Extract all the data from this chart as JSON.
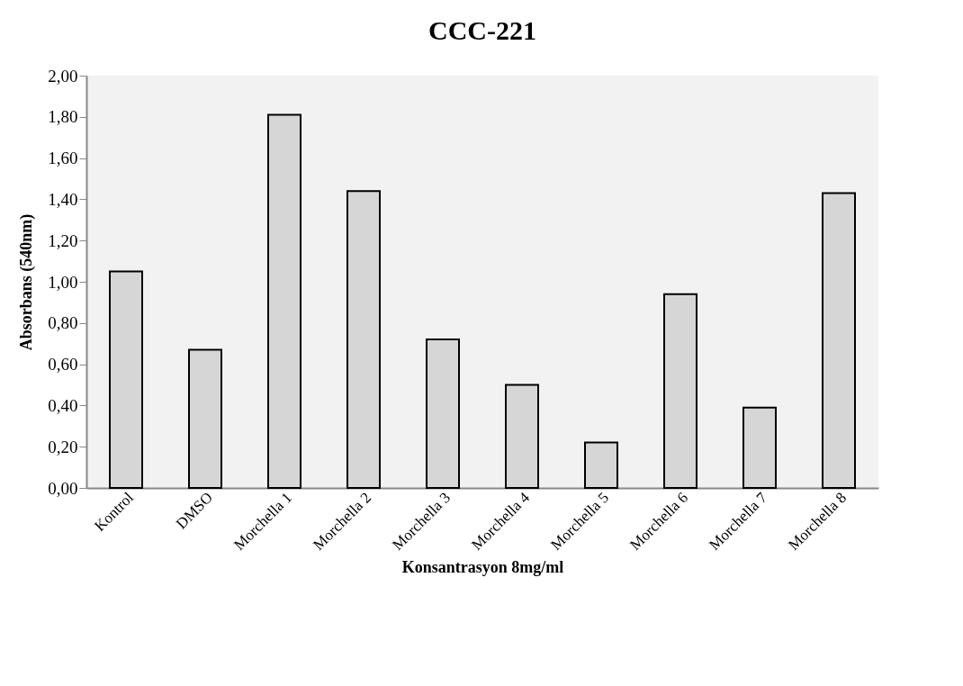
{
  "chart_data": {
    "type": "bar",
    "title": "CCC-221",
    "xlabel": "Konsantrasyon  8mg/ml",
    "ylabel": "Absorbans  (540nm)",
    "categories": [
      "Kontrol",
      "DMSO",
      "Morchella 1",
      "Morchella 2",
      "Morchella 3",
      "Morchella 4",
      "Morchella 5",
      "Morchella 6",
      "Morchella 7",
      "Morchella 8"
    ],
    "values": [
      1.05,
      0.67,
      1.81,
      1.44,
      0.72,
      0.5,
      0.22,
      0.94,
      0.39,
      1.43
    ],
    "color": "#d6d6d6",
    "ylim": [
      0,
      2
    ],
    "yticks": [
      {
        "value": 0,
        "label": "0,00"
      },
      {
        "value": 0.2,
        "label": "0,20"
      },
      {
        "value": 0.4,
        "label": "0,40"
      },
      {
        "value": 0.6,
        "label": "0,60"
      },
      {
        "value": 0.8,
        "label": "0,80"
      },
      {
        "value": 1,
        "label": "1,00"
      },
      {
        "value": 1.2,
        "label": "1,20"
      },
      {
        "value": 1.4,
        "label": "1,40"
      },
      {
        "value": 1.6,
        "label": "1,60"
      },
      {
        "value": 1.8,
        "label": "1,80"
      },
      {
        "value": 2,
        "label": "2,00"
      }
    ],
    "grid": false
  }
}
